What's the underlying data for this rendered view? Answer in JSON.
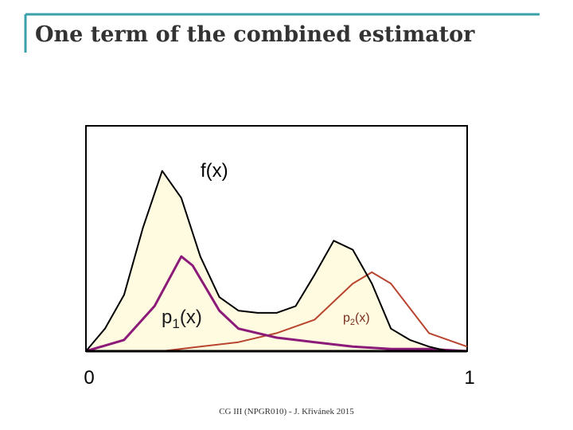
{
  "slide": {
    "title": "One term of the combined estimator",
    "footer": "CG III (NPGR010) - J. Křivánek 2015"
  },
  "colors": {
    "accent_teal": "#3aa0aa",
    "fill_cream": "#fffbe0",
    "f_curve": "#000000",
    "p1_curve": "#8b1a78",
    "p2_curve": "#b8452f"
  },
  "chart_data": {
    "type": "line",
    "xlim": [
      0,
      1
    ],
    "x_tick_labels": [
      "0",
      "1"
    ],
    "series": [
      {
        "name": "f(x)",
        "label_main": "f(x)",
        "label_sub": "",
        "x": [
          0,
          0.05,
          0.1,
          0.15,
          0.2,
          0.25,
          0.3,
          0.35,
          0.4,
          0.45,
          0.5,
          0.55,
          0.6,
          0.65,
          0.7,
          0.75,
          0.8,
          0.85,
          0.9,
          0.95,
          1
        ],
        "y": [
          0.0,
          0.1,
          0.25,
          0.55,
          0.8,
          0.68,
          0.42,
          0.24,
          0.18,
          0.17,
          0.17,
          0.2,
          0.34,
          0.49,
          0.45,
          0.3,
          0.1,
          0.05,
          0.02,
          0.0,
          0.0
        ]
      },
      {
        "name": "p1(x)",
        "label_main": "p",
        "label_sub": "1",
        "x": [
          0,
          0.1,
          0.18,
          0.25,
          0.28,
          0.35,
          0.4,
          0.5,
          0.6,
          0.7,
          0.8,
          0.9,
          1
        ],
        "y": [
          0.0,
          0.05,
          0.2,
          0.42,
          0.38,
          0.18,
          0.1,
          0.06,
          0.04,
          0.02,
          0.01,
          0.01,
          0.0
        ]
      },
      {
        "name": "p2(x)",
        "label_main": "p",
        "label_sub": "2",
        "x": [
          0,
          0.2,
          0.3,
          0.4,
          0.5,
          0.6,
          0.7,
          0.75,
          0.8,
          0.9,
          1
        ],
        "y": [
          0.0,
          0.0,
          0.02,
          0.04,
          0.08,
          0.14,
          0.3,
          0.35,
          0.3,
          0.08,
          0.02
        ]
      }
    ]
  }
}
